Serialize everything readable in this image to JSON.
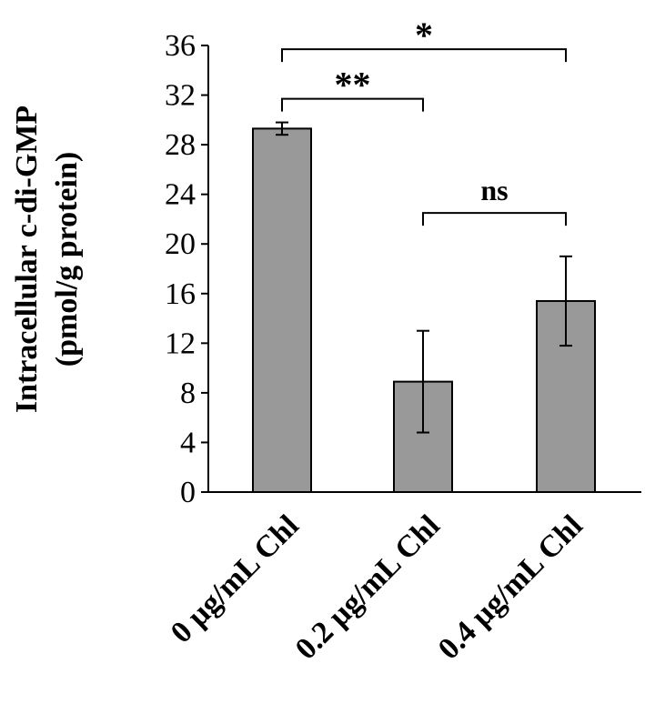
{
  "chart_data": {
    "type": "bar",
    "categories": [
      "0 µg/mL Chl",
      "0.2 µg/mL Chl",
      "0.4 µg/mL Chl"
    ],
    "values": [
      29.3,
      8.9,
      15.4
    ],
    "errors": [
      0.5,
      4.1,
      3.6
    ],
    "ylabel_line1": "Intracellular c-di-GMP",
    "ylabel_line2": "(pmol/g protein)",
    "ylim": [
      0,
      36
    ],
    "yticks": [
      "0",
      "4",
      "8",
      "12",
      "16",
      "20",
      "24",
      "28",
      "32",
      "36"
    ],
    "grid": false,
    "bar_color": "#999999",
    "significance": [
      {
        "from": 0,
        "to": 2,
        "label": "*",
        "y": 35.7
      },
      {
        "from": 0,
        "to": 1,
        "label": "**",
        "y": 31.7
      },
      {
        "from": 1,
        "to": 2,
        "label": "ns",
        "y": 22.5
      }
    ]
  }
}
